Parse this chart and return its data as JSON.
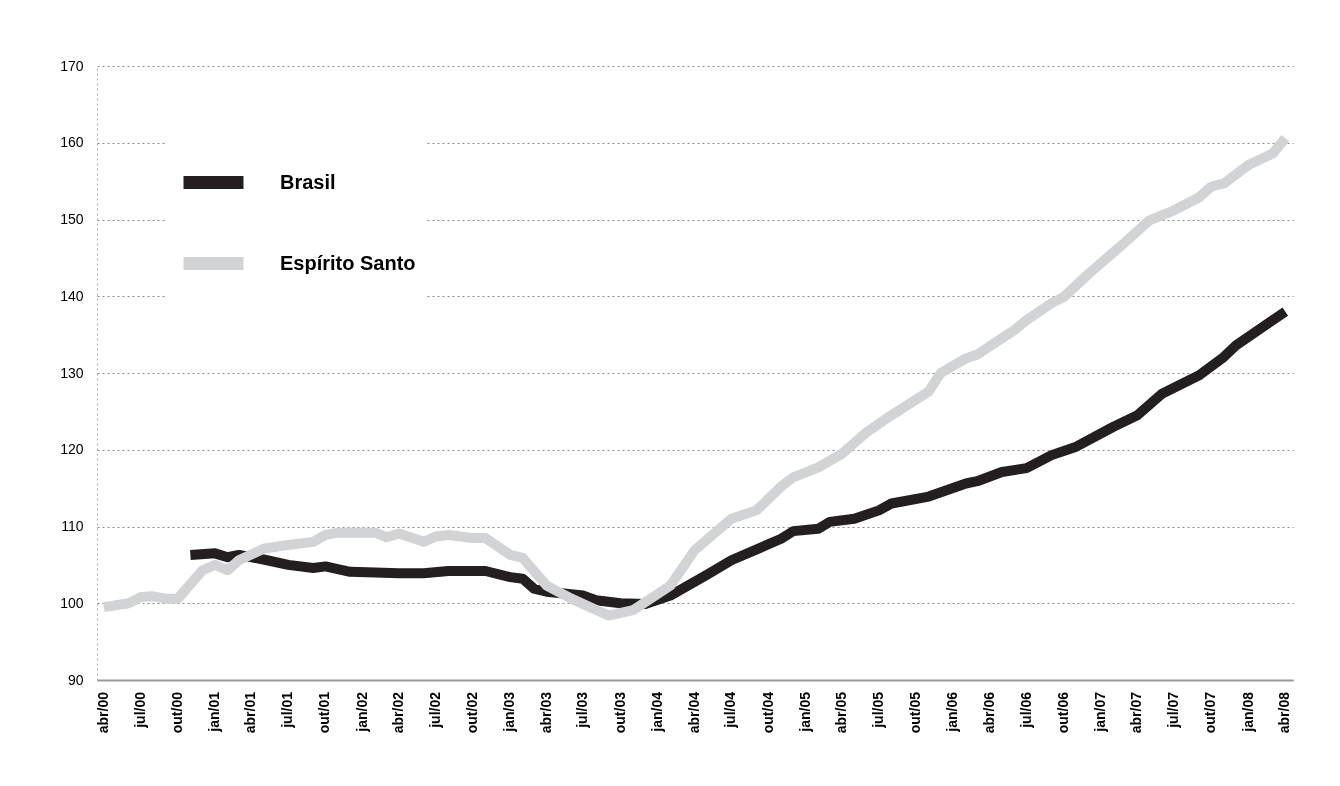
{
  "chart_data": {
    "type": "line",
    "series": [
      {
        "name": "Brasil",
        "color": "#231f20",
        "x": [
          "2000-11",
          "2001-01",
          "2001-02",
          "2001-03",
          "2001-05",
          "2001-07",
          "2001-09",
          "2001-10",
          "2001-12",
          "2002-02",
          "2002-04",
          "2002-06",
          "2002-08",
          "2002-11",
          "2003-01",
          "2003-02",
          "2003-03",
          "2003-04",
          "2003-07",
          "2003-08",
          "2003-10",
          "2003-12",
          "2004-02",
          "2004-05",
          "2004-07",
          "2004-11",
          "2004-12",
          "2005-02",
          "2005-03",
          "2005-05",
          "2005-07",
          "2005-08",
          "2005-11",
          "2006-02",
          "2006-03",
          "2006-05",
          "2006-07",
          "2006-09",
          "2006-11",
          "2007-02",
          "2007-04",
          "2007-06",
          "2007-09",
          "2007-11",
          "2007-12",
          "2008-03",
          "2008-04"
        ],
        "values": [
          106.3,
          106.5,
          106.0,
          106.3,
          105.7,
          105.0,
          104.6,
          104.8,
          104.1,
          104.0,
          103.9,
          103.9,
          104.2,
          104.2,
          103.4,
          103.2,
          101.9,
          101.5,
          101.0,
          100.4,
          100.0,
          99.9,
          101.0,
          103.7,
          105.6,
          108.4,
          109.4,
          109.7,
          110.6,
          111.0,
          112.1,
          113.0,
          113.9,
          115.6,
          115.9,
          117.1,
          117.6,
          119.3,
          120.4,
          123.0,
          124.5,
          127.3,
          129.7,
          132.1,
          133.6,
          136.9,
          138.0
        ]
      },
      {
        "name": "Espírito Santo",
        "color": "#d1d3d4",
        "x": [
          "2000-04",
          "2000-06",
          "2000-07",
          "2000-08",
          "2000-09",
          "2000-10",
          "2000-12",
          "2001-01",
          "2001-02",
          "2001-03",
          "2001-05",
          "2001-07",
          "2001-09",
          "2001-10",
          "2001-11",
          "2002-02",
          "2002-03",
          "2002-04",
          "2002-06",
          "2002-07",
          "2002-08",
          "2002-10",
          "2002-11",
          "2003-01",
          "2003-02",
          "2003-04",
          "2003-06",
          "2003-09",
          "2003-11",
          "2004-02",
          "2004-04",
          "2004-07",
          "2004-09",
          "2004-11",
          "2004-12",
          "2005-02",
          "2005-04",
          "2005-06",
          "2005-08",
          "2005-11",
          "2005-12",
          "2006-02",
          "2006-03",
          "2006-06",
          "2006-07",
          "2006-09",
          "2006-10",
          "2006-12",
          "2007-03",
          "2007-05",
          "2007-07",
          "2007-09",
          "2007-10",
          "2007-11",
          "2008-01",
          "2008-03",
          "2008-04"
        ],
        "values": [
          99.5,
          100.0,
          100.8,
          100.9,
          100.6,
          100.6,
          104.3,
          105.0,
          104.3,
          105.6,
          107.1,
          107.6,
          108.0,
          108.9,
          109.2,
          109.2,
          108.6,
          109.1,
          108.0,
          108.7,
          108.9,
          108.5,
          108.5,
          106.3,
          105.9,
          102.3,
          100.6,
          98.4,
          99.1,
          102.3,
          106.9,
          111.0,
          112.1,
          115.2,
          116.4,
          117.7,
          119.5,
          122.3,
          124.5,
          127.6,
          130.0,
          131.9,
          132.4,
          135.6,
          136.9,
          139.1,
          139.9,
          142.9,
          147.0,
          149.9,
          151.2,
          152.9,
          154.3,
          154.7,
          157.1,
          158.6,
          160.6
        ]
      }
    ],
    "xlim": [
      "2000-03-15",
      "2008-04-20"
    ],
    "xticks": [
      {
        "value": "2000-04",
        "label": "abr/00"
      },
      {
        "value": "2000-07",
        "label": "jul/00"
      },
      {
        "value": "2000-10",
        "label": "out/00"
      },
      {
        "value": "2001-01",
        "label": "jan/01"
      },
      {
        "value": "2001-04",
        "label": "abr/01"
      },
      {
        "value": "2001-07",
        "label": "jul/01"
      },
      {
        "value": "2001-10",
        "label": "out/01"
      },
      {
        "value": "2002-01",
        "label": "jan/02"
      },
      {
        "value": "2002-04",
        "label": "abr/02"
      },
      {
        "value": "2002-07",
        "label": "jul/02"
      },
      {
        "value": "2002-10",
        "label": "out/02"
      },
      {
        "value": "2003-01",
        "label": "jan/03"
      },
      {
        "value": "2003-04",
        "label": "abr/03"
      },
      {
        "value": "2003-07",
        "label": "jul/03"
      },
      {
        "value": "2003-10",
        "label": "out/03"
      },
      {
        "value": "2004-01",
        "label": "jan/04"
      },
      {
        "value": "2004-04",
        "label": "abr/04"
      },
      {
        "value": "2004-07",
        "label": "jul/04"
      },
      {
        "value": "2004-10",
        "label": "out/04"
      },
      {
        "value": "2005-01",
        "label": "jan/05"
      },
      {
        "value": "2005-04",
        "label": "abr/05"
      },
      {
        "value": "2005-07",
        "label": "jul/05"
      },
      {
        "value": "2005-10",
        "label": "out/05"
      },
      {
        "value": "2006-01",
        "label": "jan/06"
      },
      {
        "value": "2006-04",
        "label": "abr/06"
      },
      {
        "value": "2006-07",
        "label": "jul/06"
      },
      {
        "value": "2006-10",
        "label": "out/06"
      },
      {
        "value": "2007-01",
        "label": "jan/07"
      },
      {
        "value": "2007-04",
        "label": "abr/07"
      },
      {
        "value": "2007-07",
        "label": "jul/07"
      },
      {
        "value": "2007-10",
        "label": "out/07"
      },
      {
        "value": "2008-01",
        "label": "jan/08"
      },
      {
        "value": "2008-04",
        "label": "abr/08"
      }
    ],
    "ylim": [
      90,
      170
    ],
    "yticks": [
      90,
      100,
      110,
      120,
      130,
      140,
      150,
      160,
      170
    ],
    "grid": "y",
    "legend": "top left",
    "marker": "none",
    "line_style": "solid"
  }
}
